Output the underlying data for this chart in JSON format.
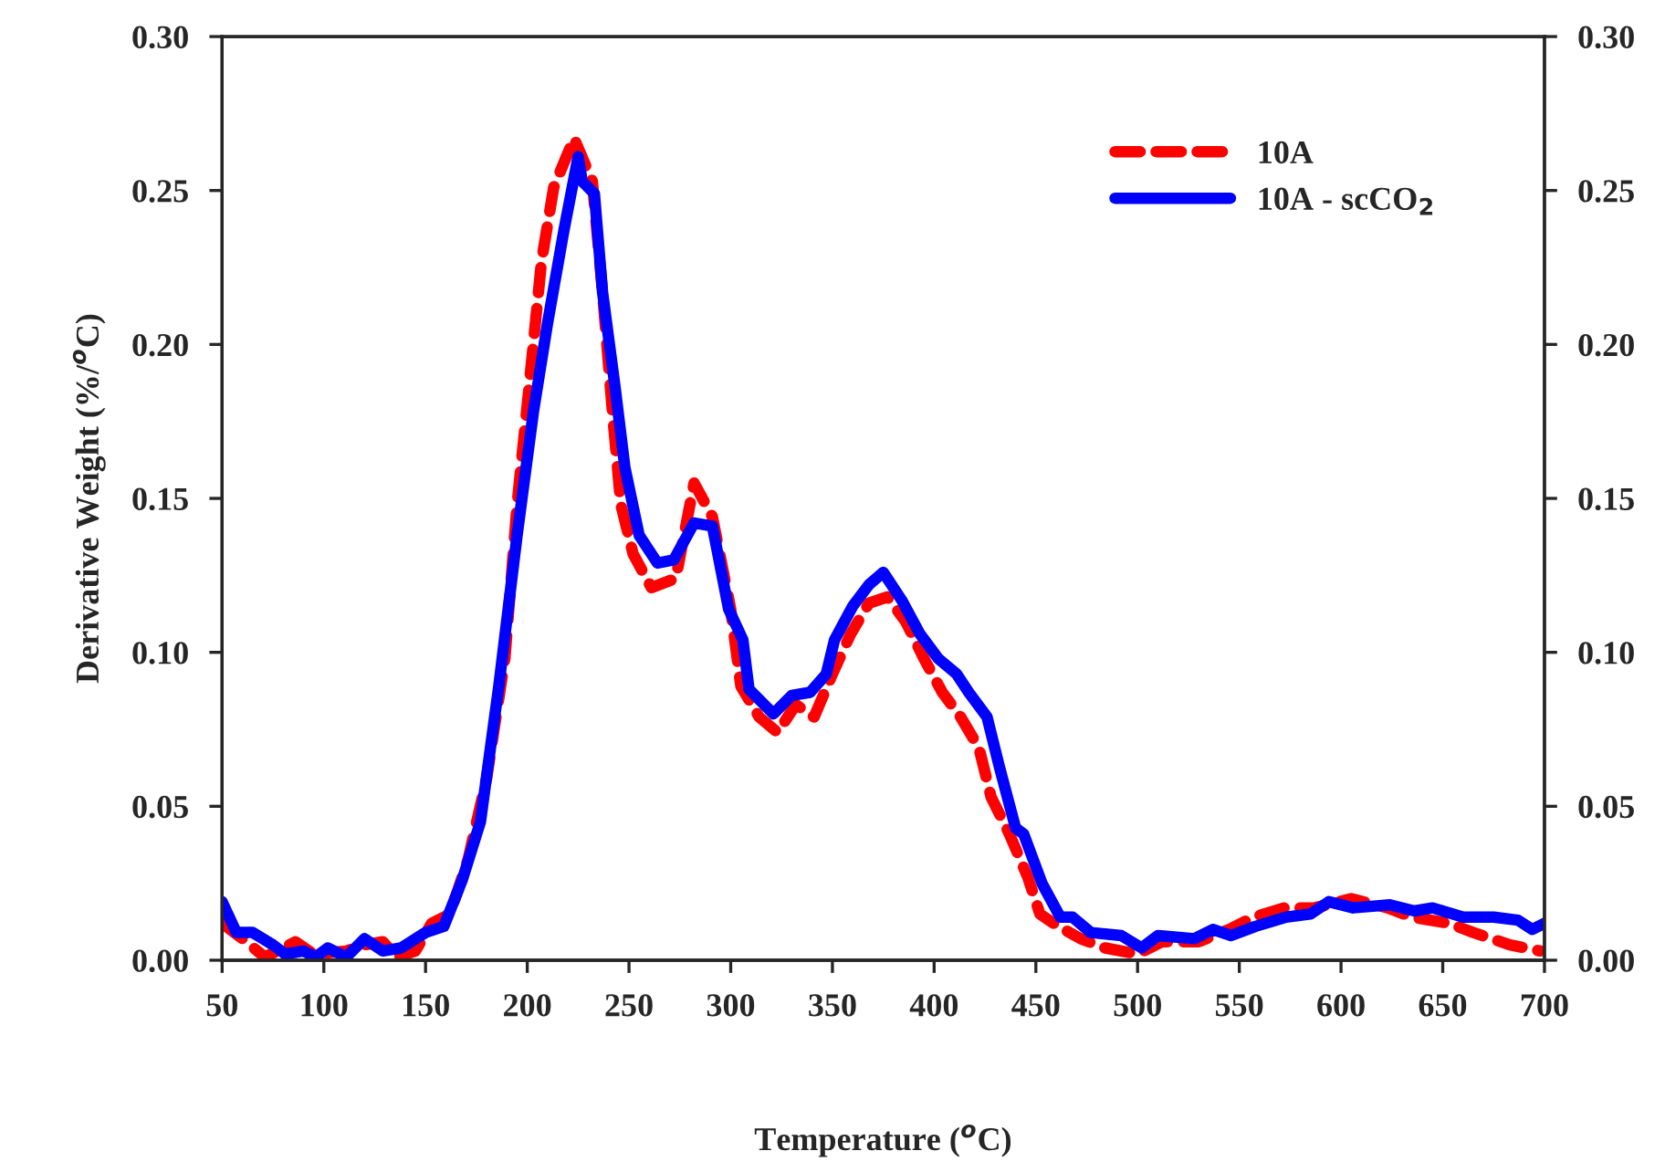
{
  "chart_data": {
    "type": "line",
    "xlabel": "Temperature ($^{o}$C)",
    "ylabel": "Derivative Weight (%/$^{o}$C)",
    "xlim": [
      50,
      700
    ],
    "xticks": [
      50,
      100,
      150,
      200,
      250,
      300,
      350,
      400,
      450,
      500,
      550,
      600,
      650,
      700
    ],
    "ylim": [
      0,
      0.3
    ],
    "yticks": [
      {
        "value": 0,
        "label": "0.00"
      },
      {
        "value": 0.05,
        "label": "0.05"
      },
      {
        "value": 0.1,
        "label": "0.10"
      },
      {
        "value": 0.15,
        "label": "0.15"
      },
      {
        "value": 0.2,
        "label": "0.20"
      },
      {
        "value": 0.25,
        "label": "0.25"
      },
      {
        "value": 0.3,
        "label": "0.30"
      }
    ],
    "y2lim": [
      0,
      0.3
    ],
    "y2ticks": [
      {
        "value": 0,
        "label": "0.00"
      },
      {
        "value": 0.05,
        "label": "0.05"
      },
      {
        "value": 0.1,
        "label": "0.10"
      },
      {
        "value": 0.15,
        "label": "0.15"
      },
      {
        "value": 0.2,
        "label": "0.20"
      },
      {
        "value": 0.25,
        "label": "0.25"
      },
      {
        "value": 0.3,
        "label": "0.30"
      }
    ],
    "grid": false,
    "legend": "top right",
    "marker": "none",
    "series": [
      {
        "name": "10A",
        "color": "#ff0000",
        "line_style": "dashed",
        "x": [
          50,
          60,
          71,
          86,
          95,
          111,
          120,
          129,
          136,
          145,
          153,
          162,
          171,
          180,
          189,
          195,
          201,
          207,
          213,
          223,
          232,
          237,
          242,
          246,
          252,
          261,
          273,
          282,
          291,
          300,
          305,
          314,
          323,
          332,
          341,
          350,
          359,
          368,
          377,
          386,
          395,
          404,
          413,
          422,
          428,
          437,
          446,
          452,
          461,
          472,
          484,
          500,
          512,
          530,
          545,
          557,
          572,
          587,
          605,
          623,
          635,
          653,
          665,
          683,
          698
        ],
        "values": [
          0.012,
          0.007,
          0.001,
          0.006,
          0.002,
          0.003,
          0.005,
          0.006,
          0.001,
          0.003,
          0.012,
          0.015,
          0.033,
          0.059,
          0.098,
          0.148,
          0.187,
          0.227,
          0.251,
          0.267,
          0.253,
          0.217,
          0.177,
          0.148,
          0.132,
          0.121,
          0.124,
          0.155,
          0.144,
          0.114,
          0.089,
          0.079,
          0.074,
          0.083,
          0.079,
          0.093,
          0.106,
          0.116,
          0.118,
          0.11,
          0.098,
          0.087,
          0.079,
          0.069,
          0.053,
          0.041,
          0.027,
          0.015,
          0.011,
          0.007,
          0.004,
          0.002,
          0.006,
          0.006,
          0.01,
          0.014,
          0.017,
          0.017,
          0.02,
          0.017,
          0.014,
          0.012,
          0.009,
          0.005,
          0.003
        ]
      },
      {
        "name": "10A - scCO$_{2}$",
        "color": "#0000ff",
        "line_style": "solid",
        "x": [
          50,
          57,
          65,
          75,
          81,
          90,
          96,
          102,
          111,
          120,
          129,
          138,
          150,
          159,
          168,
          177,
          186,
          195,
          203,
          210,
          218,
          225,
          227,
          233,
          237,
          243,
          248,
          255,
          264,
          272,
          282,
          291,
          299,
          306,
          309,
          321,
          330,
          339,
          347,
          351,
          360,
          368,
          375,
          384,
          393,
          402,
          411,
          417,
          426,
          432,
          440,
          444,
          453,
          462,
          468,
          477,
          492,
          502,
          510,
          528,
          537,
          546,
          558,
          573,
          585,
          594,
          606,
          624,
          636,
          645,
          660,
          675,
          687,
          694,
          700
        ],
        "values": [
          0.019,
          0.009,
          0.009,
          0.005,
          0.002,
          0.003,
          0.001,
          0.004,
          0.001,
          0.007,
          0.003,
          0.004,
          0.009,
          0.011,
          0.026,
          0.045,
          0.089,
          0.138,
          0.178,
          0.207,
          0.237,
          0.261,
          0.253,
          0.249,
          0.217,
          0.187,
          0.16,
          0.138,
          0.129,
          0.13,
          0.142,
          0.141,
          0.114,
          0.104,
          0.088,
          0.08,
          0.086,
          0.087,
          0.093,
          0.104,
          0.115,
          0.122,
          0.126,
          0.117,
          0.106,
          0.098,
          0.093,
          0.087,
          0.079,
          0.063,
          0.043,
          0.041,
          0.025,
          0.014,
          0.014,
          0.009,
          0.008,
          0.004,
          0.008,
          0.007,
          0.01,
          0.008,
          0.011,
          0.014,
          0.015,
          0.019,
          0.017,
          0.018,
          0.016,
          0.017,
          0.014,
          0.014,
          0.013,
          0.01,
          0.012
        ]
      }
    ]
  }
}
